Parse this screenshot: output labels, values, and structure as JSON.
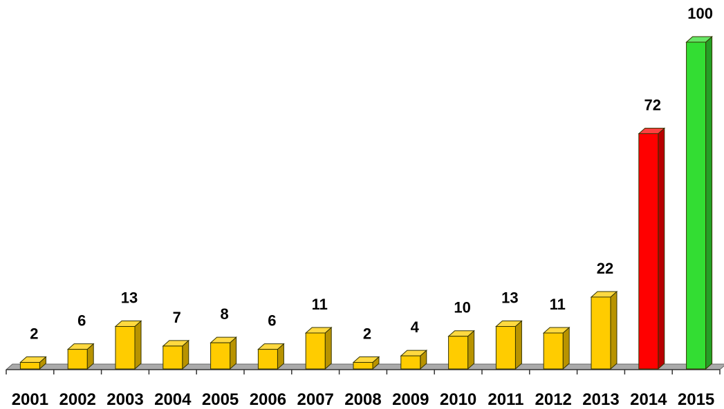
{
  "chart_data": {
    "type": "bar",
    "categories": [
      "2001",
      "2002",
      "2003",
      "2004",
      "2005",
      "2006",
      "2007",
      "2008",
      "2009",
      "2010",
      "2011",
      "2012",
      "2013",
      "2014",
      "2015"
    ],
    "values": [
      2,
      6,
      13,
      7,
      8,
      6,
      11,
      2,
      4,
      10,
      13,
      11,
      22,
      72,
      100
    ],
    "ylim": [
      0,
      100
    ],
    "grid": false,
    "style": "3d-bars",
    "colors": {
      "default": "#FFCC00",
      "highlights": {
        "2014": "#FF0000",
        "2015": "#33DD33"
      }
    },
    "data_labels": true,
    "title": "",
    "xlabel": "",
    "ylabel": ""
  }
}
